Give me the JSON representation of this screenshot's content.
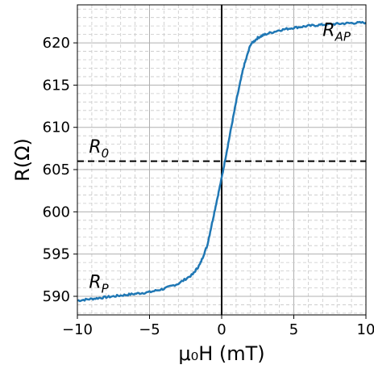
{
  "chart_data": {
    "type": "line",
    "title": "",
    "xlabel": "μ₀H (mT)",
    "ylabel": "R(Ω)",
    "xlim": [
      -10,
      10
    ],
    "ylim": [
      587.8,
      624.5
    ],
    "x_ticks": [
      -10,
      -5,
      0,
      5,
      10
    ],
    "x_tick_labels": [
      "−10",
      "−5",
      "0",
      "5",
      "10"
    ],
    "y_ticks": [
      590,
      595,
      600,
      605,
      610,
      615,
      620
    ],
    "y_tick_labels": [
      "590",
      "595",
      "600",
      "605",
      "610",
      "615",
      "620"
    ],
    "grid": "major and minor, dashed",
    "colors": {
      "series": "#1f77b4"
    },
    "series": [
      {
        "x": [
          -10,
          -9,
          -8,
          -7,
          -6,
          -5,
          -4,
          -3,
          -2,
          -1.5,
          -1,
          -0.5,
          0,
          0.5,
          1,
          1.5,
          2,
          2.5,
          3,
          4,
          5,
          6,
          7,
          8,
          9,
          10
        ],
        "y": [
          589.5,
          589.7,
          589.9,
          590.1,
          590.3,
          590.5,
          590.9,
          591.5,
          592.6,
          593.8,
          596.0,
          600.0,
          604.0,
          608.5,
          613.0,
          617.0,
          619.8,
          620.6,
          621.0,
          621.5,
          621.8,
          622.0,
          622.15,
          622.25,
          622.35,
          622.4
        ]
      }
    ],
    "reference_lines": [
      {
        "orientation": "horizontal",
        "value": 606,
        "style": "dashed",
        "color": "#000000"
      },
      {
        "orientation": "vertical",
        "value": 0,
        "style": "solid",
        "color": "#000000"
      }
    ],
    "annotations": [
      {
        "main": "R",
        "sub": "0",
        "x": -9.2,
        "y": 607
      },
      {
        "main": "R",
        "sub": "P",
        "x": -9.2,
        "y": 591
      },
      {
        "main": "R",
        "sub": "AP",
        "x": 7.0,
        "y": 620.8
      }
    ]
  }
}
